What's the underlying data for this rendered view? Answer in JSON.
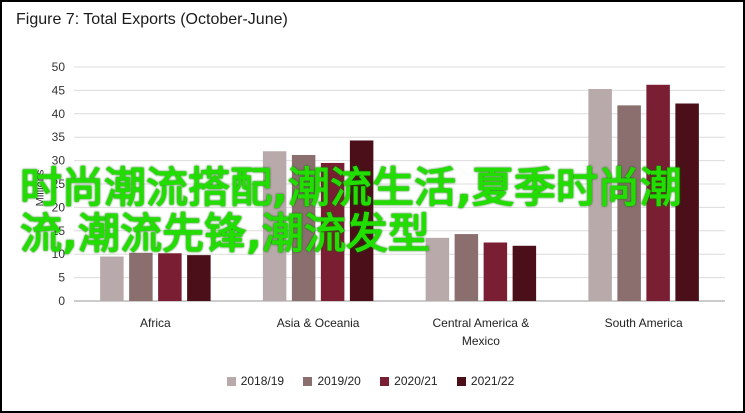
{
  "figure_title": "Figure 7: Total Exports (October-June)",
  "overlay_text": "时尚潮流搭配,潮流生活,夏季时尚潮流,潮流先锋,潮流发型",
  "colors": {
    "s2018_19": "#b8a9aa",
    "s2019_20": "#8b6f6f",
    "s2020_21": "#7a1f33",
    "s2021_22": "#4a0f18",
    "overlay": "#22dd00"
  },
  "chart_data": {
    "type": "bar",
    "title": "Figure 7: Total Exports (October-June)",
    "ylabel": "Millions",
    "xlabel": "",
    "ylim": [
      0,
      50
    ],
    "yticks": [
      0,
      5,
      10,
      15,
      20,
      25,
      30,
      35,
      40,
      45,
      50
    ],
    "grid": true,
    "legend_position": "bottom",
    "categories": [
      "Africa",
      "Asia & Oceania",
      "Central America & Mexico",
      "South America"
    ],
    "category_lines": [
      [
        "Africa"
      ],
      [
        "Asia & Oceania"
      ],
      [
        "Central America &",
        "Mexico"
      ],
      [
        "South America"
      ]
    ],
    "series": [
      {
        "name": "2018/19",
        "values": [
          9.5,
          32.0,
          13.5,
          45.3
        ]
      },
      {
        "name": "2019/20",
        "values": [
          10.3,
          31.2,
          14.3,
          41.8
        ]
      },
      {
        "name": "2020/21",
        "values": [
          10.2,
          29.5,
          12.5,
          46.2
        ]
      },
      {
        "name": "2021/22",
        "values": [
          9.8,
          34.3,
          11.8,
          42.2
        ]
      }
    ]
  }
}
